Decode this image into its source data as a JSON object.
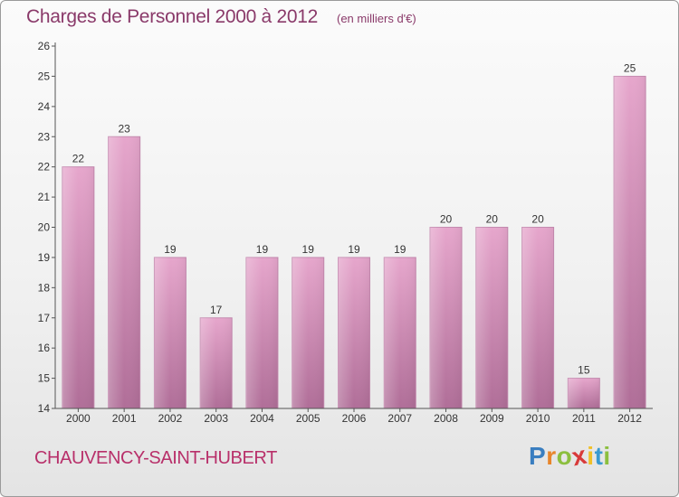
{
  "header": {
    "title": "Charges de Personnel 2000 à 2012",
    "subtitle": "(en milliers d'€)"
  },
  "footer": {
    "city": "CHAUVENCY-SAINT-HUBERT",
    "logo_text": "Proxiti",
    "logo_letters": [
      "P",
      "r",
      "o",
      "x",
      "i",
      "t",
      "i"
    ],
    "logo_colors": [
      "#3a7ec0",
      "#e8852a",
      "#8cbf3f",
      "#d83a3a",
      "#f0c028",
      "#3a9ad0",
      "#8cbf3f"
    ]
  },
  "colors": {
    "bar_top": "#e6a6cc",
    "bar_bottom": "#b06e98",
    "text": "#333333",
    "accent": "#8a3a6a"
  },
  "chart_data": {
    "type": "bar",
    "title": "Charges de Personnel 2000 à 2012",
    "subtitle": "(en milliers d'€)",
    "categories": [
      "2000",
      "2001",
      "2002",
      "2003",
      "2004",
      "2005",
      "2006",
      "2007",
      "2008",
      "2009",
      "2010",
      "2011",
      "2012"
    ],
    "values": [
      22,
      23,
      19,
      17,
      19,
      19,
      19,
      19,
      20,
      20,
      20,
      15,
      25
    ],
    "ylim": [
      14,
      26
    ],
    "yticks": [
      14,
      15,
      16,
      17,
      18,
      19,
      20,
      21,
      22,
      23,
      24,
      25,
      26
    ],
    "grid": false,
    "legend": "none"
  }
}
